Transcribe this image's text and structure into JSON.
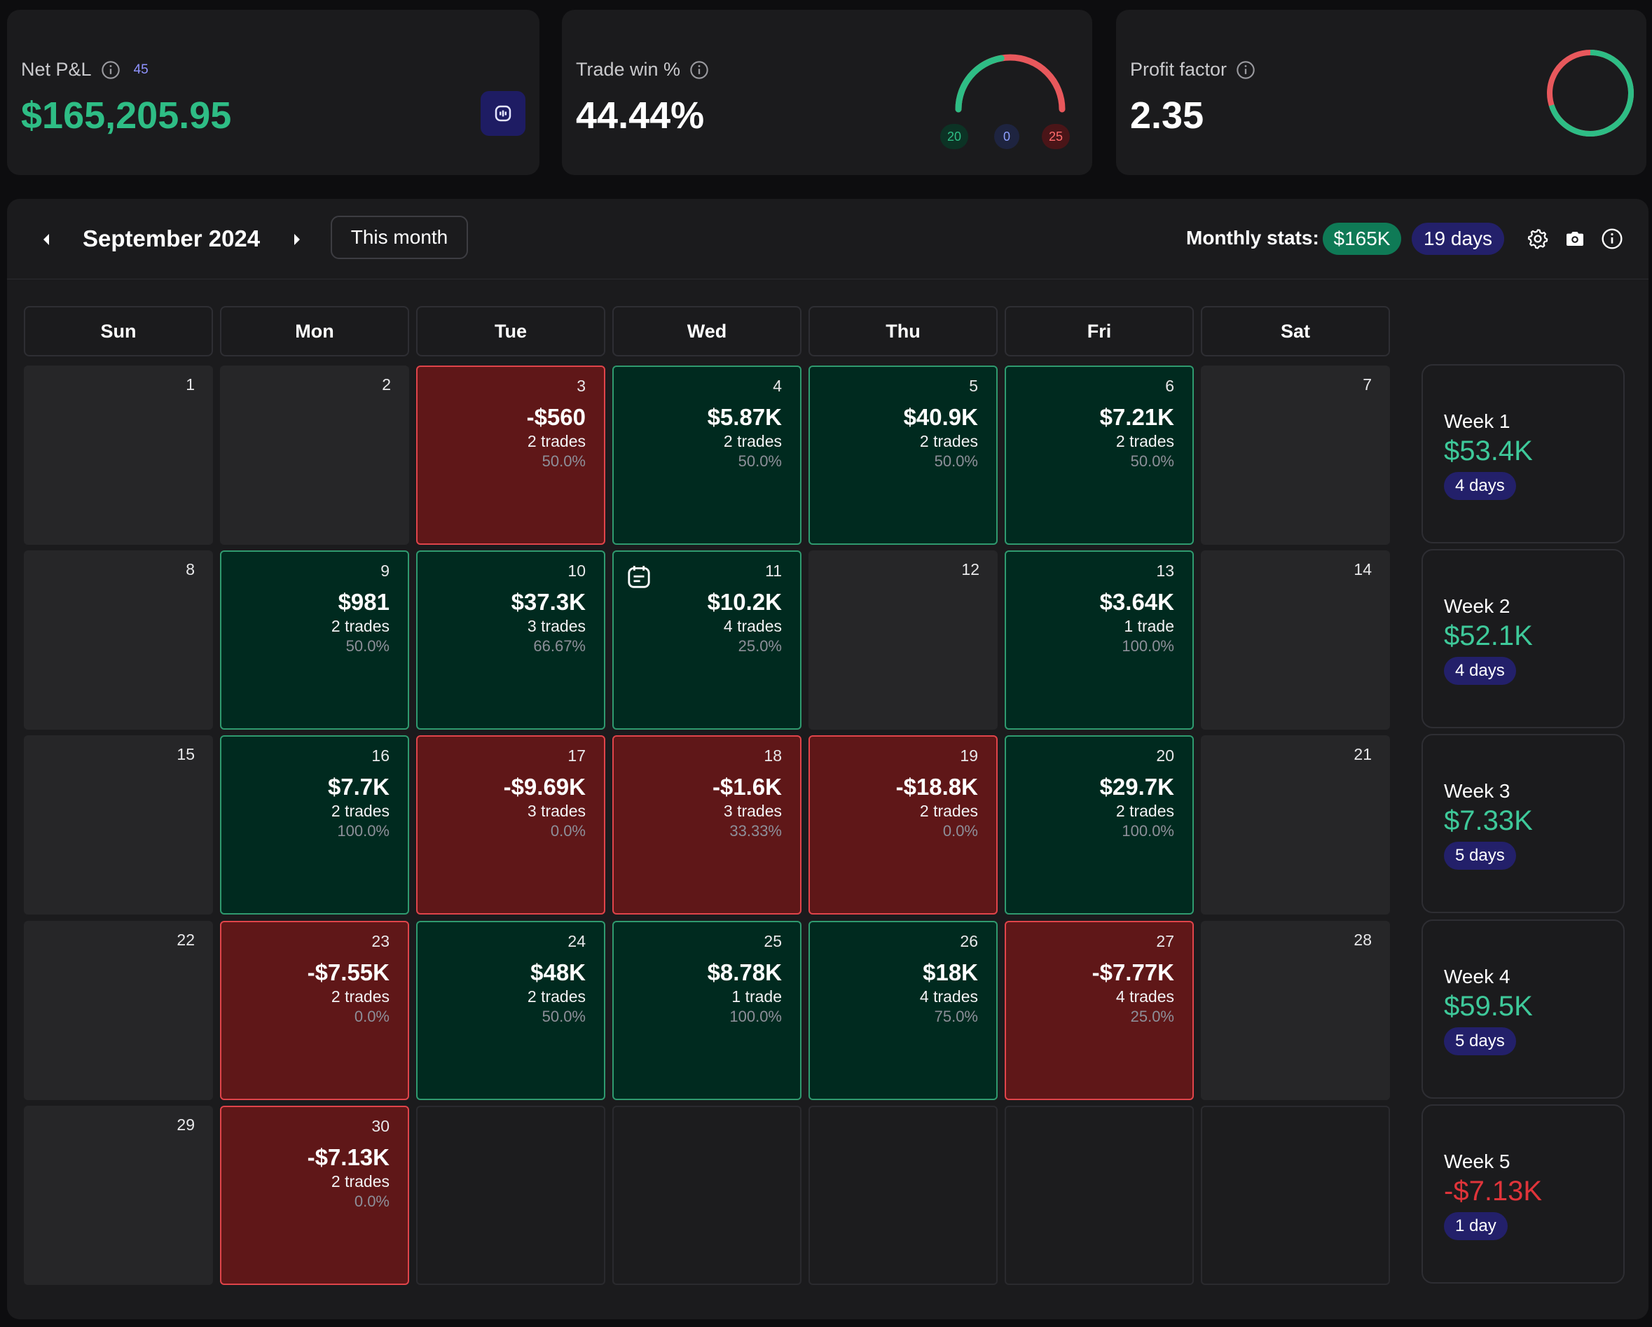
{
  "summary": {
    "net_pnl": {
      "label": "Net P&L",
      "count": "45",
      "value": "$165,205.95"
    },
    "trade_win": {
      "label": "Trade win %",
      "value": "44.44%",
      "wins": "20",
      "breakeven": "0",
      "losses": "25",
      "win_fraction": 0.4444
    },
    "profit_factor": {
      "label": "Profit factor",
      "value": "2.35",
      "gross_profit_fraction": 0.701
    }
  },
  "toolbar": {
    "month_title": "September 2024",
    "this_month_label": "This month",
    "monthly_stats_label": "Monthly stats:",
    "monthly_pnl": "$165K",
    "monthly_days": "19 days"
  },
  "weekdays": [
    "Sun",
    "Mon",
    "Tue",
    "Wed",
    "Thu",
    "Fri",
    "Sat"
  ],
  "days": [
    {
      "num": "1",
      "status": "empty"
    },
    {
      "num": "2",
      "status": "empty"
    },
    {
      "num": "3",
      "status": "loss",
      "pnl": "-$560",
      "trades": "2 trades",
      "winrate": "50.0%"
    },
    {
      "num": "4",
      "status": "profit",
      "pnl": "$5.87K",
      "trades": "2 trades",
      "winrate": "50.0%"
    },
    {
      "num": "5",
      "status": "profit",
      "pnl": "$40.9K",
      "trades": "2 trades",
      "winrate": "50.0%"
    },
    {
      "num": "6",
      "status": "profit",
      "pnl": "$7.21K",
      "trades": "2 trades",
      "winrate": "50.0%"
    },
    {
      "num": "7",
      "status": "empty"
    },
    {
      "num": "8",
      "status": "empty"
    },
    {
      "num": "9",
      "status": "profit",
      "pnl": "$981",
      "trades": "2 trades",
      "winrate": "50.0%"
    },
    {
      "num": "10",
      "status": "profit",
      "pnl": "$37.3K",
      "trades": "3 trades",
      "winrate": "66.67%"
    },
    {
      "num": "11",
      "status": "profit",
      "pnl": "$10.2K",
      "trades": "4 trades",
      "winrate": "25.0%",
      "note": true
    },
    {
      "num": "12",
      "status": "empty"
    },
    {
      "num": "13",
      "status": "profit",
      "pnl": "$3.64K",
      "trades": "1 trade",
      "winrate": "100.0%"
    },
    {
      "num": "14",
      "status": "empty"
    },
    {
      "num": "15",
      "status": "empty"
    },
    {
      "num": "16",
      "status": "profit",
      "pnl": "$7.7K",
      "trades": "2 trades",
      "winrate": "100.0%"
    },
    {
      "num": "17",
      "status": "loss",
      "pnl": "-$9.69K",
      "trades": "3 trades",
      "winrate": "0.0%"
    },
    {
      "num": "18",
      "status": "loss",
      "pnl": "-$1.6K",
      "trades": "3 trades",
      "winrate": "33.33%"
    },
    {
      "num": "19",
      "status": "loss",
      "pnl": "-$18.8K",
      "trades": "2 trades",
      "winrate": "0.0%"
    },
    {
      "num": "20",
      "status": "profit",
      "pnl": "$29.7K",
      "trades": "2 trades",
      "winrate": "100.0%"
    },
    {
      "num": "21",
      "status": "empty"
    },
    {
      "num": "22",
      "status": "empty"
    },
    {
      "num": "23",
      "status": "loss",
      "pnl": "-$7.55K",
      "trades": "2 trades",
      "winrate": "0.0%"
    },
    {
      "num": "24",
      "status": "profit",
      "pnl": "$48K",
      "trades": "2 trades",
      "winrate": "50.0%"
    },
    {
      "num": "25",
      "status": "profit",
      "pnl": "$8.78K",
      "trades": "1 trade",
      "winrate": "100.0%"
    },
    {
      "num": "26",
      "status": "profit",
      "pnl": "$18K",
      "trades": "4 trades",
      "winrate": "75.0%"
    },
    {
      "num": "27",
      "status": "loss",
      "pnl": "-$7.77K",
      "trades": "4 trades",
      "winrate": "25.0%"
    },
    {
      "num": "28",
      "status": "empty"
    },
    {
      "num": "29",
      "status": "empty"
    },
    {
      "num": "30",
      "status": "loss",
      "pnl": "-$7.13K",
      "trades": "2 trades",
      "winrate": "0.0%"
    },
    {
      "num": "",
      "status": "filler"
    },
    {
      "num": "",
      "status": "filler"
    },
    {
      "num": "",
      "status": "filler"
    },
    {
      "num": "",
      "status": "filler"
    },
    {
      "num": "",
      "status": "filler"
    }
  ],
  "weeks": [
    {
      "label": "Week 1",
      "pnl": "$53.4K",
      "days": "4 days",
      "positive": true
    },
    {
      "label": "Week 2",
      "pnl": "$52.1K",
      "days": "4 days",
      "positive": true
    },
    {
      "label": "Week 3",
      "pnl": "$7.33K",
      "days": "5 days",
      "positive": true
    },
    {
      "label": "Week 4",
      "pnl": "$59.5K",
      "days": "5 days",
      "positive": true
    },
    {
      "label": "Week 5",
      "pnl": "-$7.13K",
      "days": "1 day",
      "positive": false
    }
  ],
  "colors": {
    "profit": "#2ebd85",
    "loss": "#e8585c",
    "accent": "#23206a"
  }
}
